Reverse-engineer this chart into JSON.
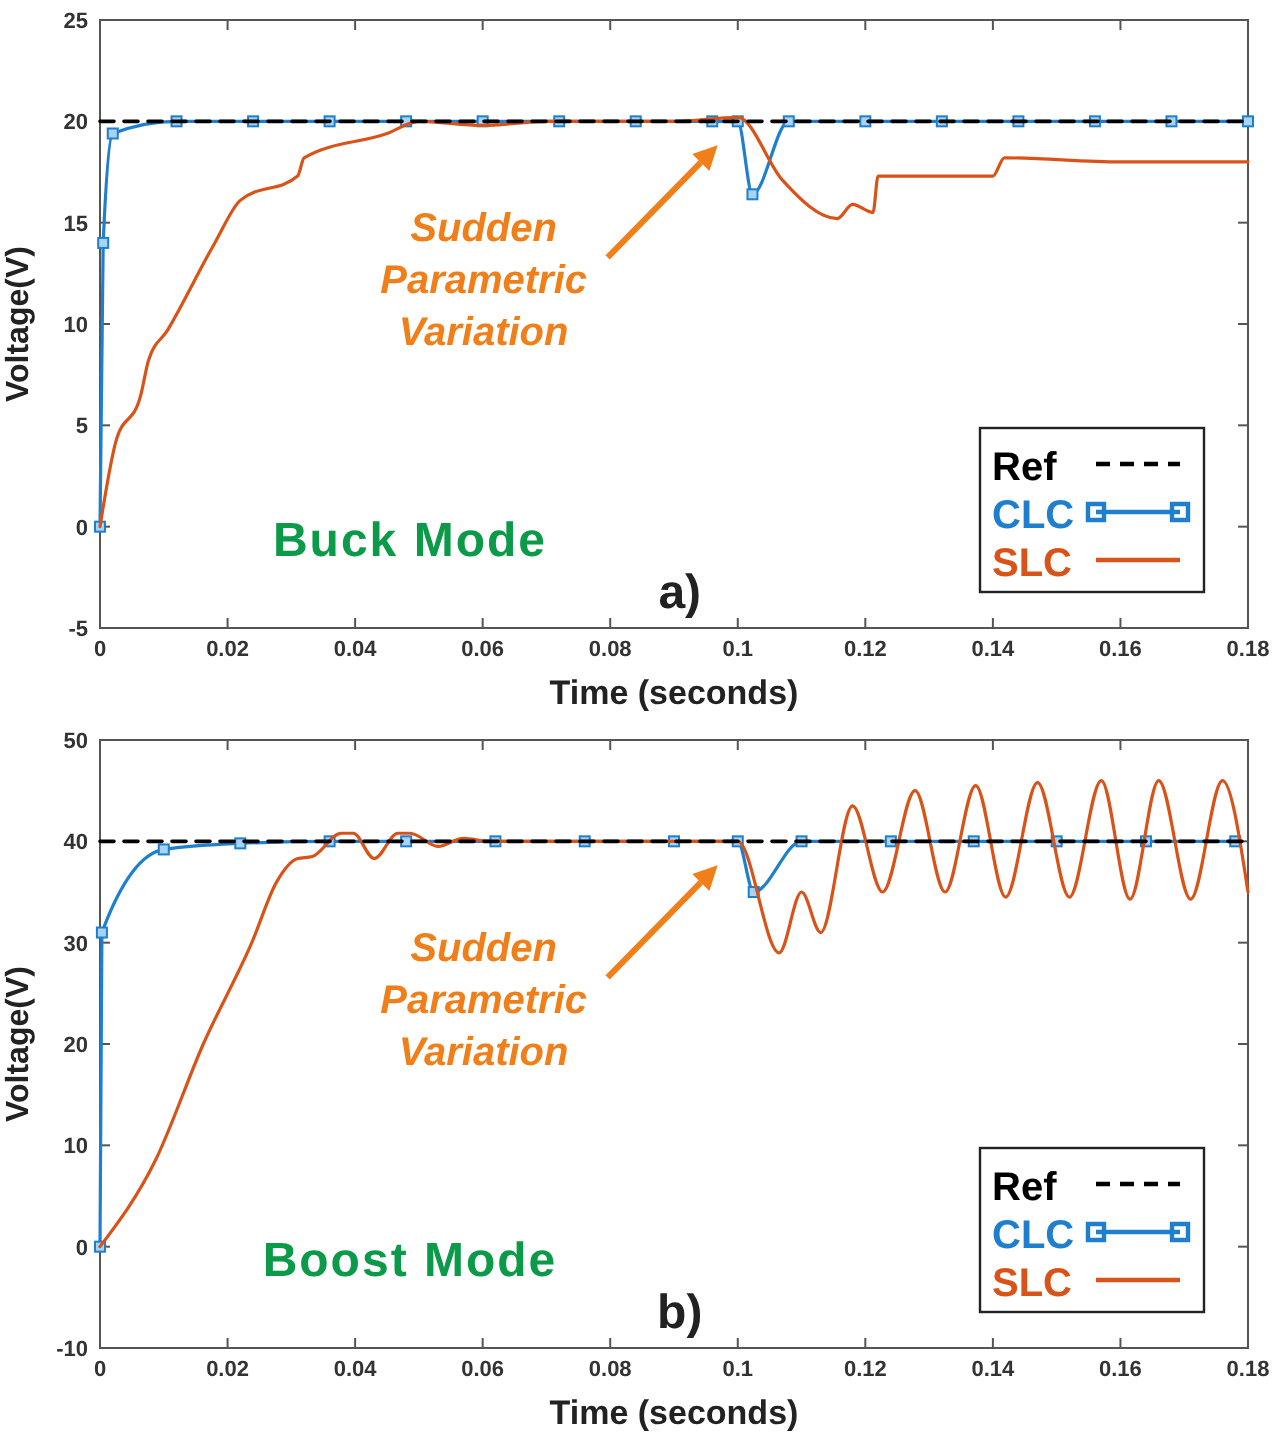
{
  "chart_data": [
    {
      "type": "line",
      "xlabel": "Time (seconds)",
      "ylabel": "Voltage(V)",
      "xlim": [
        0,
        0.18
      ],
      "ylim": [
        -5,
        25
      ],
      "xticks": [
        0,
        0.02,
        0.04,
        0.06,
        0.08,
        0.1,
        0.12,
        0.14,
        0.16,
        0.18
      ],
      "yticks": [
        -5,
        0,
        5,
        10,
        15,
        20,
        25
      ],
      "legend": "bottom right",
      "annotations": [
        "Sudden Parametric Variation",
        "Buck Mode",
        "a)"
      ],
      "series": [
        {
          "name": "Ref",
          "color": "#000000",
          "line_style": "dashed",
          "marker": "none",
          "x": [
            0,
            0.18
          ],
          "values": [
            20,
            20
          ]
        },
        {
          "name": "CLC",
          "color": "#1f7fcf",
          "line_style": "solid",
          "marker": "square",
          "x": [
            0,
            0.0005,
            0.002,
            0.012,
            0.024,
            0.036,
            0.048,
            0.06,
            0.072,
            0.084,
            0.096,
            0.1,
            0.1023,
            0.108,
            0.12,
            0.132,
            0.144,
            0.156,
            0.168,
            0.18
          ],
          "values": [
            0,
            14,
            19.4,
            20,
            20,
            20,
            20,
            20,
            20,
            20,
            20,
            20,
            16.4,
            20,
            20,
            20,
            20,
            20,
            20,
            20
          ]
        },
        {
          "name": "SLC",
          "color": "#d95319",
          "line_style": "solid",
          "marker": "none",
          "x": [
            0,
            0.0024,
            0.0064,
            0.0076,
            0.0106,
            0.018,
            0.022,
            0.031,
            0.032,
            0.045,
            0.05,
            0.06,
            0.07,
            0.08,
            0.09,
            0.1,
            0.107,
            0.1156,
            0.118,
            0.1212,
            0.122,
            0.14,
            0.1418,
            0.16,
            0.18
          ],
          "values": [
            0,
            4.1,
            6.5,
            8.2,
            9.7,
            14,
            16.1,
            17.3,
            18.2,
            19.4,
            20,
            19.8,
            20,
            20,
            20,
            20.2,
            17.1,
            15.2,
            15.9,
            15.5,
            17.3,
            17.3,
            18.2,
            18,
            18
          ]
        }
      ]
    },
    {
      "type": "line",
      "xlabel": "Time (seconds)",
      "ylabel": "Voltage(V)",
      "xlim": [
        0,
        0.18
      ],
      "ylim": [
        -10,
        50
      ],
      "xticks": [
        0,
        0.02,
        0.04,
        0.06,
        0.08,
        0.1,
        0.12,
        0.14,
        0.16,
        0.18
      ],
      "yticks": [
        -10,
        0,
        10,
        20,
        30,
        40,
        50
      ],
      "legend": "bottom right",
      "annotations": [
        "Sudden Parametric Variation",
        "Boost Mode",
        "b)"
      ],
      "series": [
        {
          "name": "Ref",
          "color": "#000000",
          "line_style": "dashed",
          "marker": "none",
          "x": [
            0,
            0.18
          ],
          "values": [
            40,
            40
          ]
        },
        {
          "name": "CLC",
          "color": "#1f7fcf",
          "line_style": "solid",
          "marker": "square",
          "x": [
            0,
            0.0003,
            0.01,
            0.022,
            0.036,
            0.048,
            0.062,
            0.076,
            0.09,
            0.1,
            0.1025,
            0.11,
            0.124,
            0.137,
            0.15,
            0.164,
            0.178
          ],
          "values": [
            0,
            31,
            39.2,
            39.8,
            40,
            40,
            40,
            40,
            40,
            40,
            35,
            40,
            40,
            40,
            40,
            40,
            40
          ]
        },
        {
          "name": "SLC",
          "color": "#d95319",
          "line_style": "solid",
          "marker": "none",
          "x": [
            0,
            0.0086,
            0.0162,
            0.0238,
            0.0277,
            0.031,
            0.0333,
            0.0378,
            0.0397,
            0.043,
            0.0467,
            0.0486,
            0.053,
            0.057,
            0.061,
            0.08,
            0.1,
            0.1065,
            0.11,
            0.113,
            0.118,
            0.1227,
            0.1278,
            0.1325,
            0.1373,
            0.142,
            0.147,
            0.152,
            0.157,
            0.1615,
            0.166,
            0.171,
            0.176,
            0.18
          ],
          "values": [
            0,
            8.4,
            20,
            30,
            36,
            38.3,
            38.5,
            40.8,
            40.8,
            38.3,
            40.8,
            40.8,
            39.5,
            40.3,
            40,
            40,
            40,
            29,
            35,
            31,
            43.5,
            35,
            45,
            35,
            45.5,
            34.5,
            45.8,
            34.5,
            46,
            34.3,
            46,
            34.3,
            46,
            35
          ]
        }
      ]
    }
  ]
}
